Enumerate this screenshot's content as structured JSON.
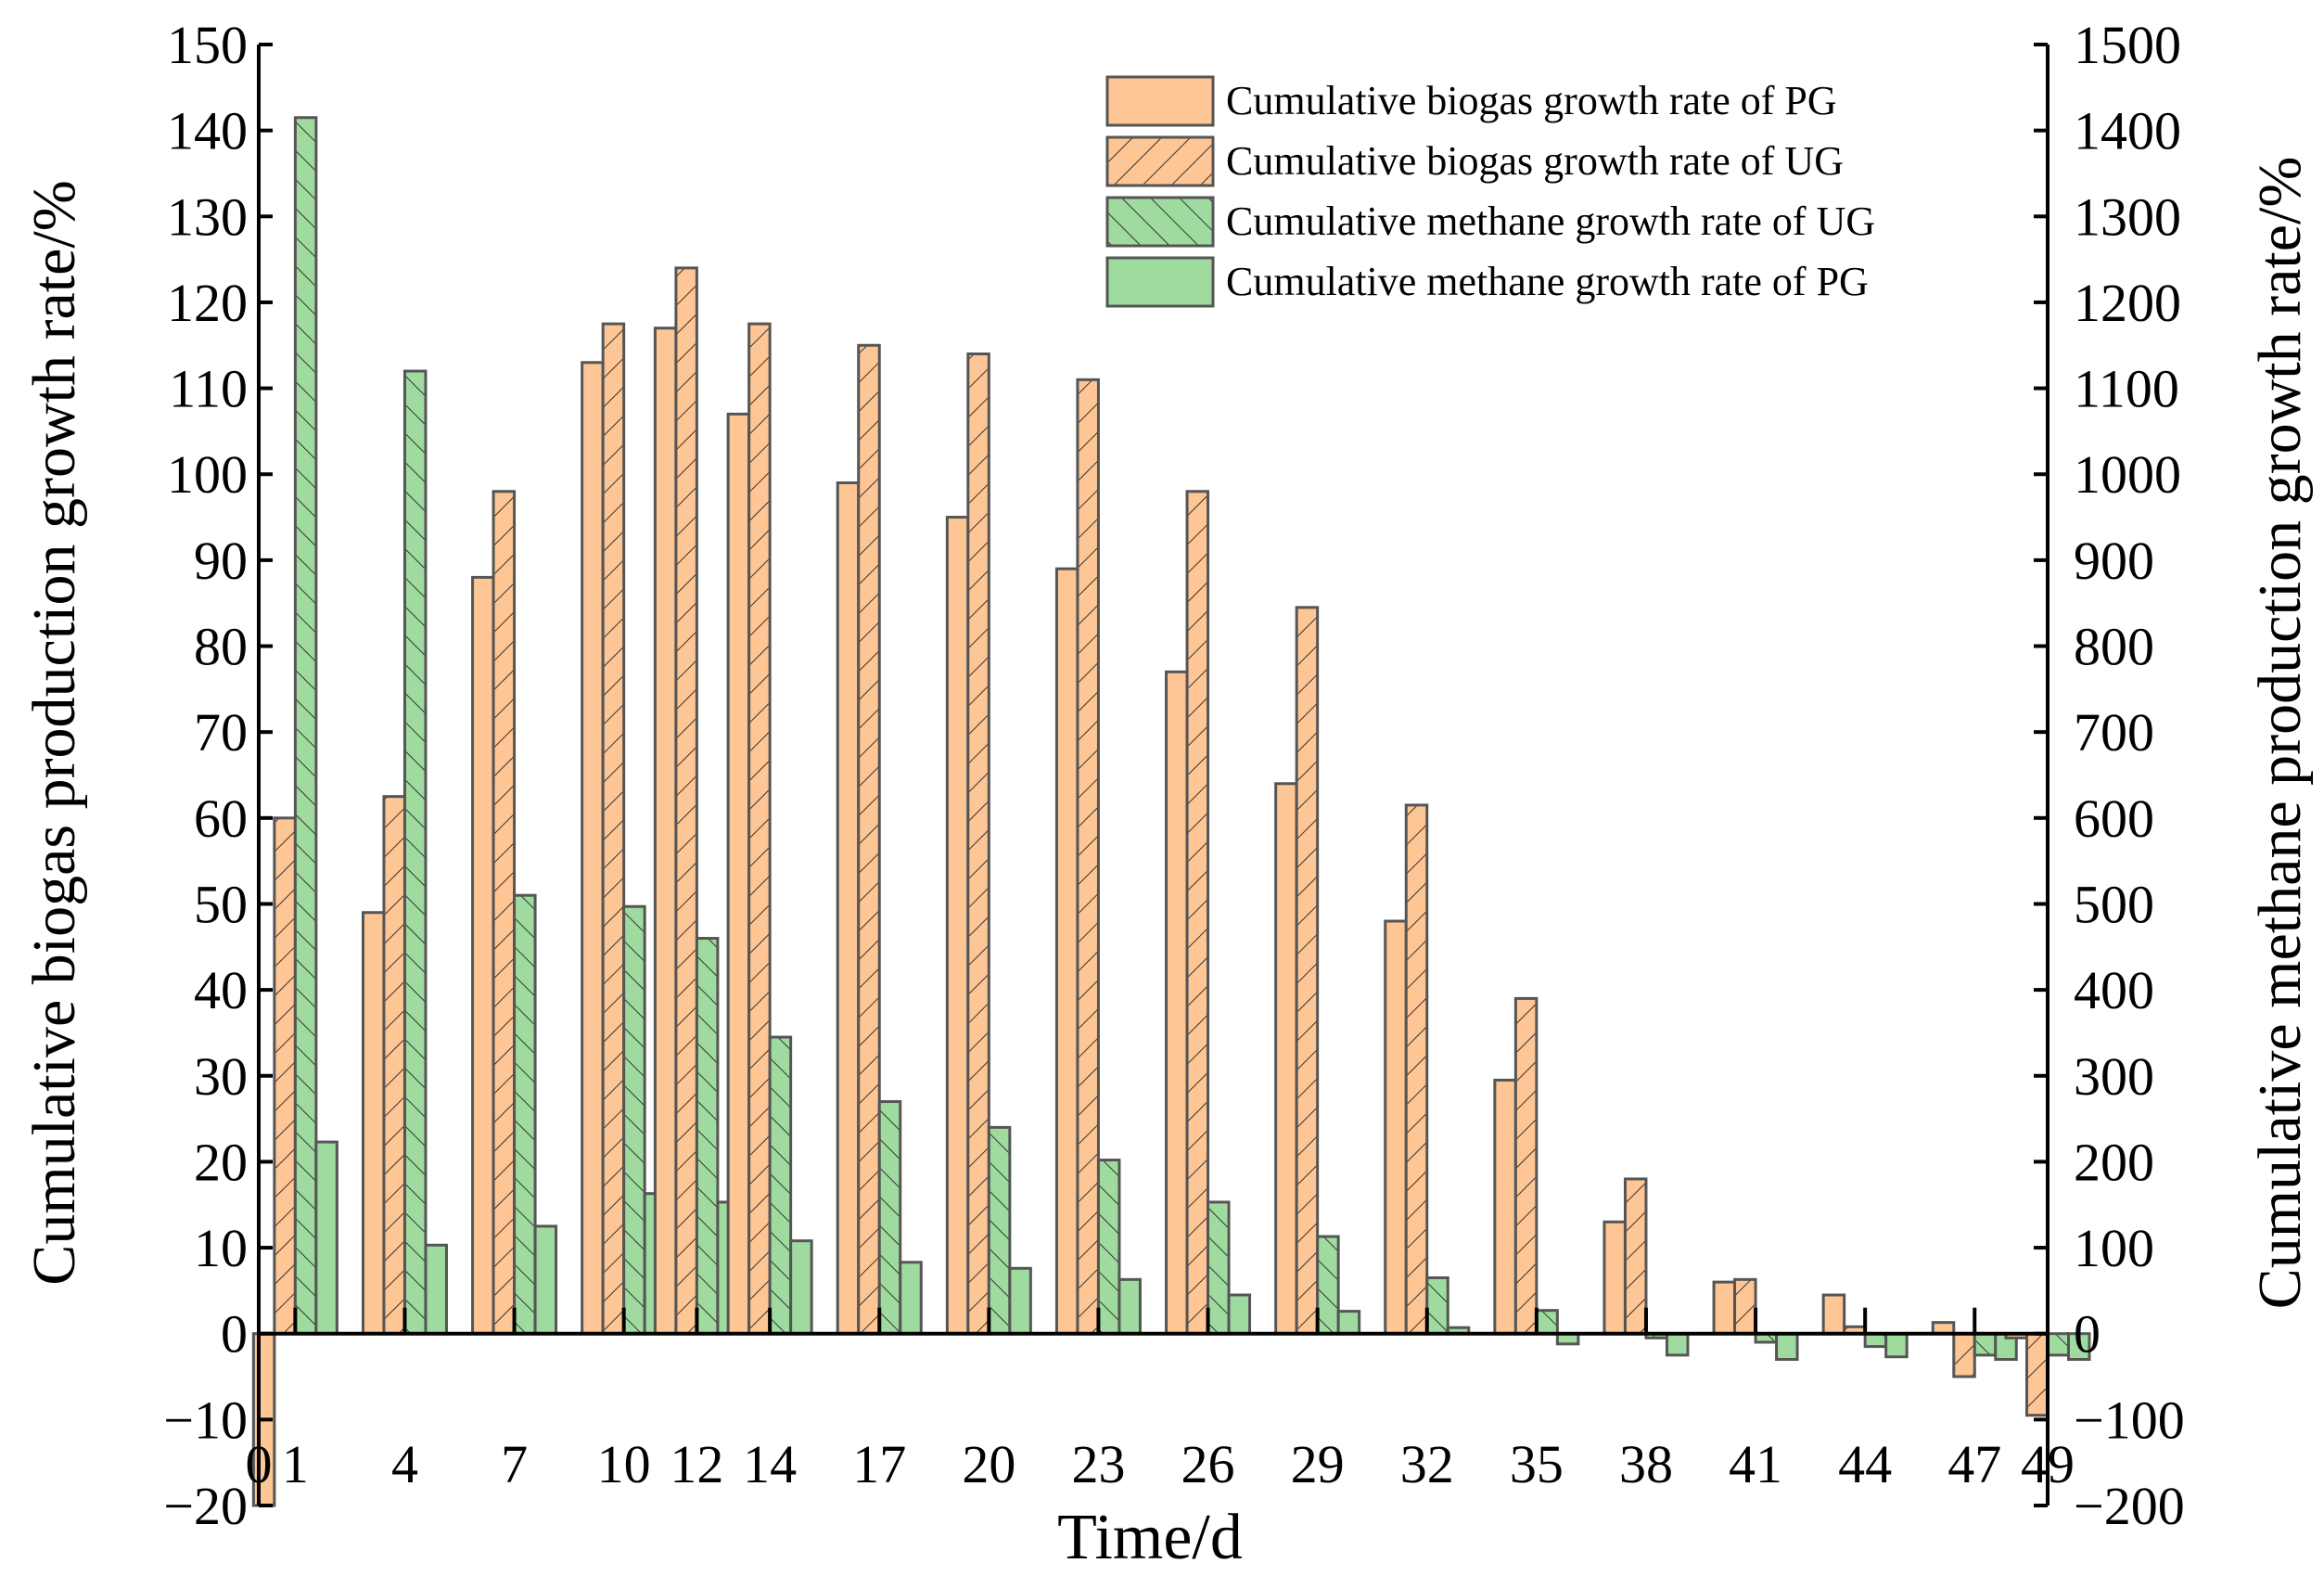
{
  "chart_data": {
    "type": "bar",
    "xlabel": "Time/d",
    "ylabel_left": "Cumulative biogas production growth rate/%",
    "ylabel_right": "Cumulative methane production growth rate/%",
    "ylim_left": [
      -20,
      150
    ],
    "ylim_right": [
      -200,
      1500
    ],
    "yticks_left": [
      -20,
      -10,
      0,
      10,
      20,
      30,
      40,
      50,
      60,
      70,
      80,
      90,
      100,
      110,
      120,
      130,
      140,
      150
    ],
    "yticks_right": [
      -200,
      -100,
      0,
      100,
      200,
      300,
      400,
      500,
      600,
      700,
      800,
      900,
      1000,
      1100,
      1200,
      1300,
      1400,
      1500
    ],
    "x_tick_labels": [
      "0",
      "1",
      "4",
      "7",
      "10",
      "12",
      "14",
      "17",
      "20",
      "23",
      "26",
      "29",
      "32",
      "35",
      "38",
      "41",
      "44",
      "47",
      "49"
    ],
    "categories": [
      "1",
      "4",
      "7",
      "10",
      "12",
      "14",
      "17",
      "20",
      "23",
      "26",
      "29",
      "32",
      "35",
      "38",
      "41",
      "44",
      "47",
      "49"
    ],
    "colors": {
      "biogas": "#FDC694",
      "methane": "#9FDB9F",
      "edge": "#555555"
    },
    "series": [
      {
        "name": "Cumulative biogas growth rate of PG",
        "axis": "left",
        "pattern": "solid",
        "color": "#FDC694",
        "values": [
          -20,
          49,
          88,
          113,
          117,
          107,
          99,
          95,
          89,
          77,
          64,
          48,
          29.5,
          13,
          6,
          4.5,
          1.3,
          -0.5
        ]
      },
      {
        "name": "Cumulative biogas growth rate of UG",
        "axis": "left",
        "pattern": "backslash",
        "color": "#FDC694",
        "values": [
          60,
          62.5,
          98,
          117.5,
          124,
          117.5,
          115,
          114,
          111,
          98,
          84.5,
          61.5,
          39,
          18,
          6.3,
          0.8,
          -5,
          -9.5
        ]
      },
      {
        "name": "Cumulative methane growth rate of UG",
        "axis": "right",
        "pattern": "slash",
        "color": "#9FDB9F",
        "values": [
          1415,
          1120,
          510,
          497,
          460,
          345,
          270,
          240,
          202,
          153,
          113,
          65,
          27,
          -5,
          -10,
          -15,
          -25,
          -25
        ]
      },
      {
        "name": "Cumulative methane growth rate of PG",
        "axis": "right",
        "pattern": "solid",
        "color": "#9FDB9F",
        "values": [
          223,
          103,
          125,
          163,
          153,
          108,
          83,
          76,
          63,
          45,
          26,
          7,
          -12,
          -25,
          -30,
          -27,
          -30,
          -30
        ]
      }
    ],
    "legend": {
      "position": "top-right",
      "entries": [
        "Cumulative biogas growth rate of PG",
        "Cumulative biogas growth rate of UG",
        "Cumulative methane growth rate of UG",
        "Cumulative methane growth rate of PG"
      ]
    }
  }
}
